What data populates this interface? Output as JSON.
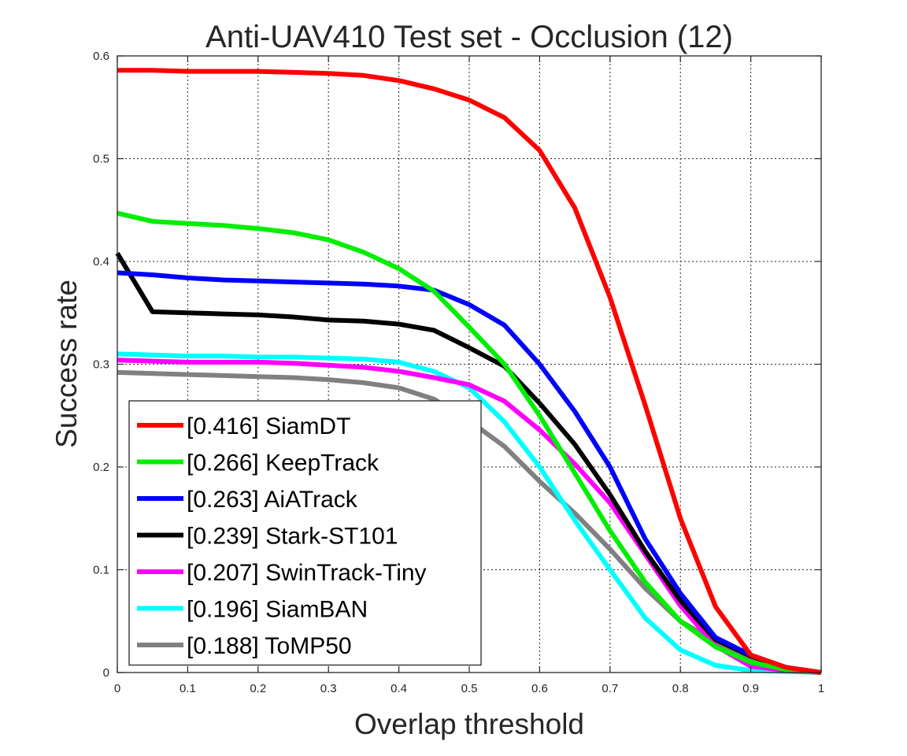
{
  "chart_data": {
    "type": "line",
    "title": "Anti-UAV410 Test set - Occlusion (12)",
    "xlabel": "Overlap threshold",
    "ylabel": "Success rate",
    "xlim": [
      0,
      1
    ],
    "ylim": [
      0,
      0.6
    ],
    "grid": true,
    "legend_position": "bottom-left",
    "x_ticks": [
      "0",
      "0.1",
      "0.2",
      "0.3",
      "0.4",
      "0.5",
      "0.6",
      "0.7",
      "0.8",
      "0.9",
      "1"
    ],
    "y_ticks": [
      "0",
      "0.1",
      "0.2",
      "0.3",
      "0.4",
      "0.5",
      "0.6"
    ],
    "x": [
      0,
      0.05,
      0.1,
      0.15,
      0.2,
      0.25,
      0.3,
      0.35,
      0.4,
      0.45,
      0.5,
      0.55,
      0.6,
      0.65,
      0.7,
      0.75,
      0.8,
      0.85,
      0.9,
      0.95,
      1.0
    ],
    "series": [
      {
        "name": "[0.416] SiamDT",
        "color": "#ff0000",
        "values": [
          0.586,
          0.586,
          0.585,
          0.585,
          0.585,
          0.584,
          0.583,
          0.581,
          0.576,
          0.568,
          0.557,
          0.54,
          0.508,
          0.452,
          0.365,
          0.26,
          0.15,
          0.064,
          0.017,
          0.005,
          0.0
        ]
      },
      {
        "name": "[0.266] KeepTrack",
        "color": "#00ee00",
        "values": [
          0.447,
          0.439,
          0.437,
          0.435,
          0.432,
          0.428,
          0.421,
          0.409,
          0.393,
          0.371,
          0.336,
          0.3,
          0.25,
          0.194,
          0.138,
          0.088,
          0.05,
          0.025,
          0.01,
          0.003,
          0.0
        ]
      },
      {
        "name": "[0.263] AiATrack",
        "color": "#0000ff",
        "values": [
          0.389,
          0.387,
          0.384,
          0.382,
          0.381,
          0.38,
          0.379,
          0.378,
          0.376,
          0.372,
          0.358,
          0.338,
          0.3,
          0.254,
          0.2,
          0.13,
          0.077,
          0.034,
          0.017,
          0.005,
          0.0
        ]
      },
      {
        "name": "[0.239] Stark-ST101",
        "color": "#000000",
        "values": [
          0.408,
          0.351,
          0.35,
          0.349,
          0.348,
          0.346,
          0.343,
          0.342,
          0.339,
          0.333,
          0.316,
          0.298,
          0.262,
          0.222,
          0.173,
          0.118,
          0.07,
          0.032,
          0.016,
          0.005,
          0.0
        ]
      },
      {
        "name": "[0.207] SwinTrack-Tiny",
        "color": "#ff00ff",
        "values": [
          0.304,
          0.303,
          0.302,
          0.302,
          0.302,
          0.301,
          0.299,
          0.297,
          0.293,
          0.287,
          0.28,
          0.264,
          0.236,
          0.203,
          0.165,
          0.115,
          0.065,
          0.026,
          0.006,
          0.002,
          0.0
        ]
      },
      {
        "name": "[0.196] SiamBAN",
        "color": "#00ffff",
        "values": [
          0.31,
          0.309,
          0.308,
          0.308,
          0.307,
          0.307,
          0.306,
          0.305,
          0.302,
          0.293,
          0.277,
          0.244,
          0.2,
          0.148,
          0.1,
          0.053,
          0.022,
          0.007,
          0.002,
          0.001,
          0.0
        ]
      },
      {
        "name": "[0.188] ToMP50",
        "color": "#808080",
        "values": [
          0.292,
          0.291,
          0.29,
          0.289,
          0.288,
          0.287,
          0.285,
          0.282,
          0.277,
          0.266,
          0.245,
          0.22,
          0.186,
          0.155,
          0.12,
          0.082,
          0.05,
          0.03,
          0.014,
          0.004,
          0.0
        ]
      }
    ]
  }
}
